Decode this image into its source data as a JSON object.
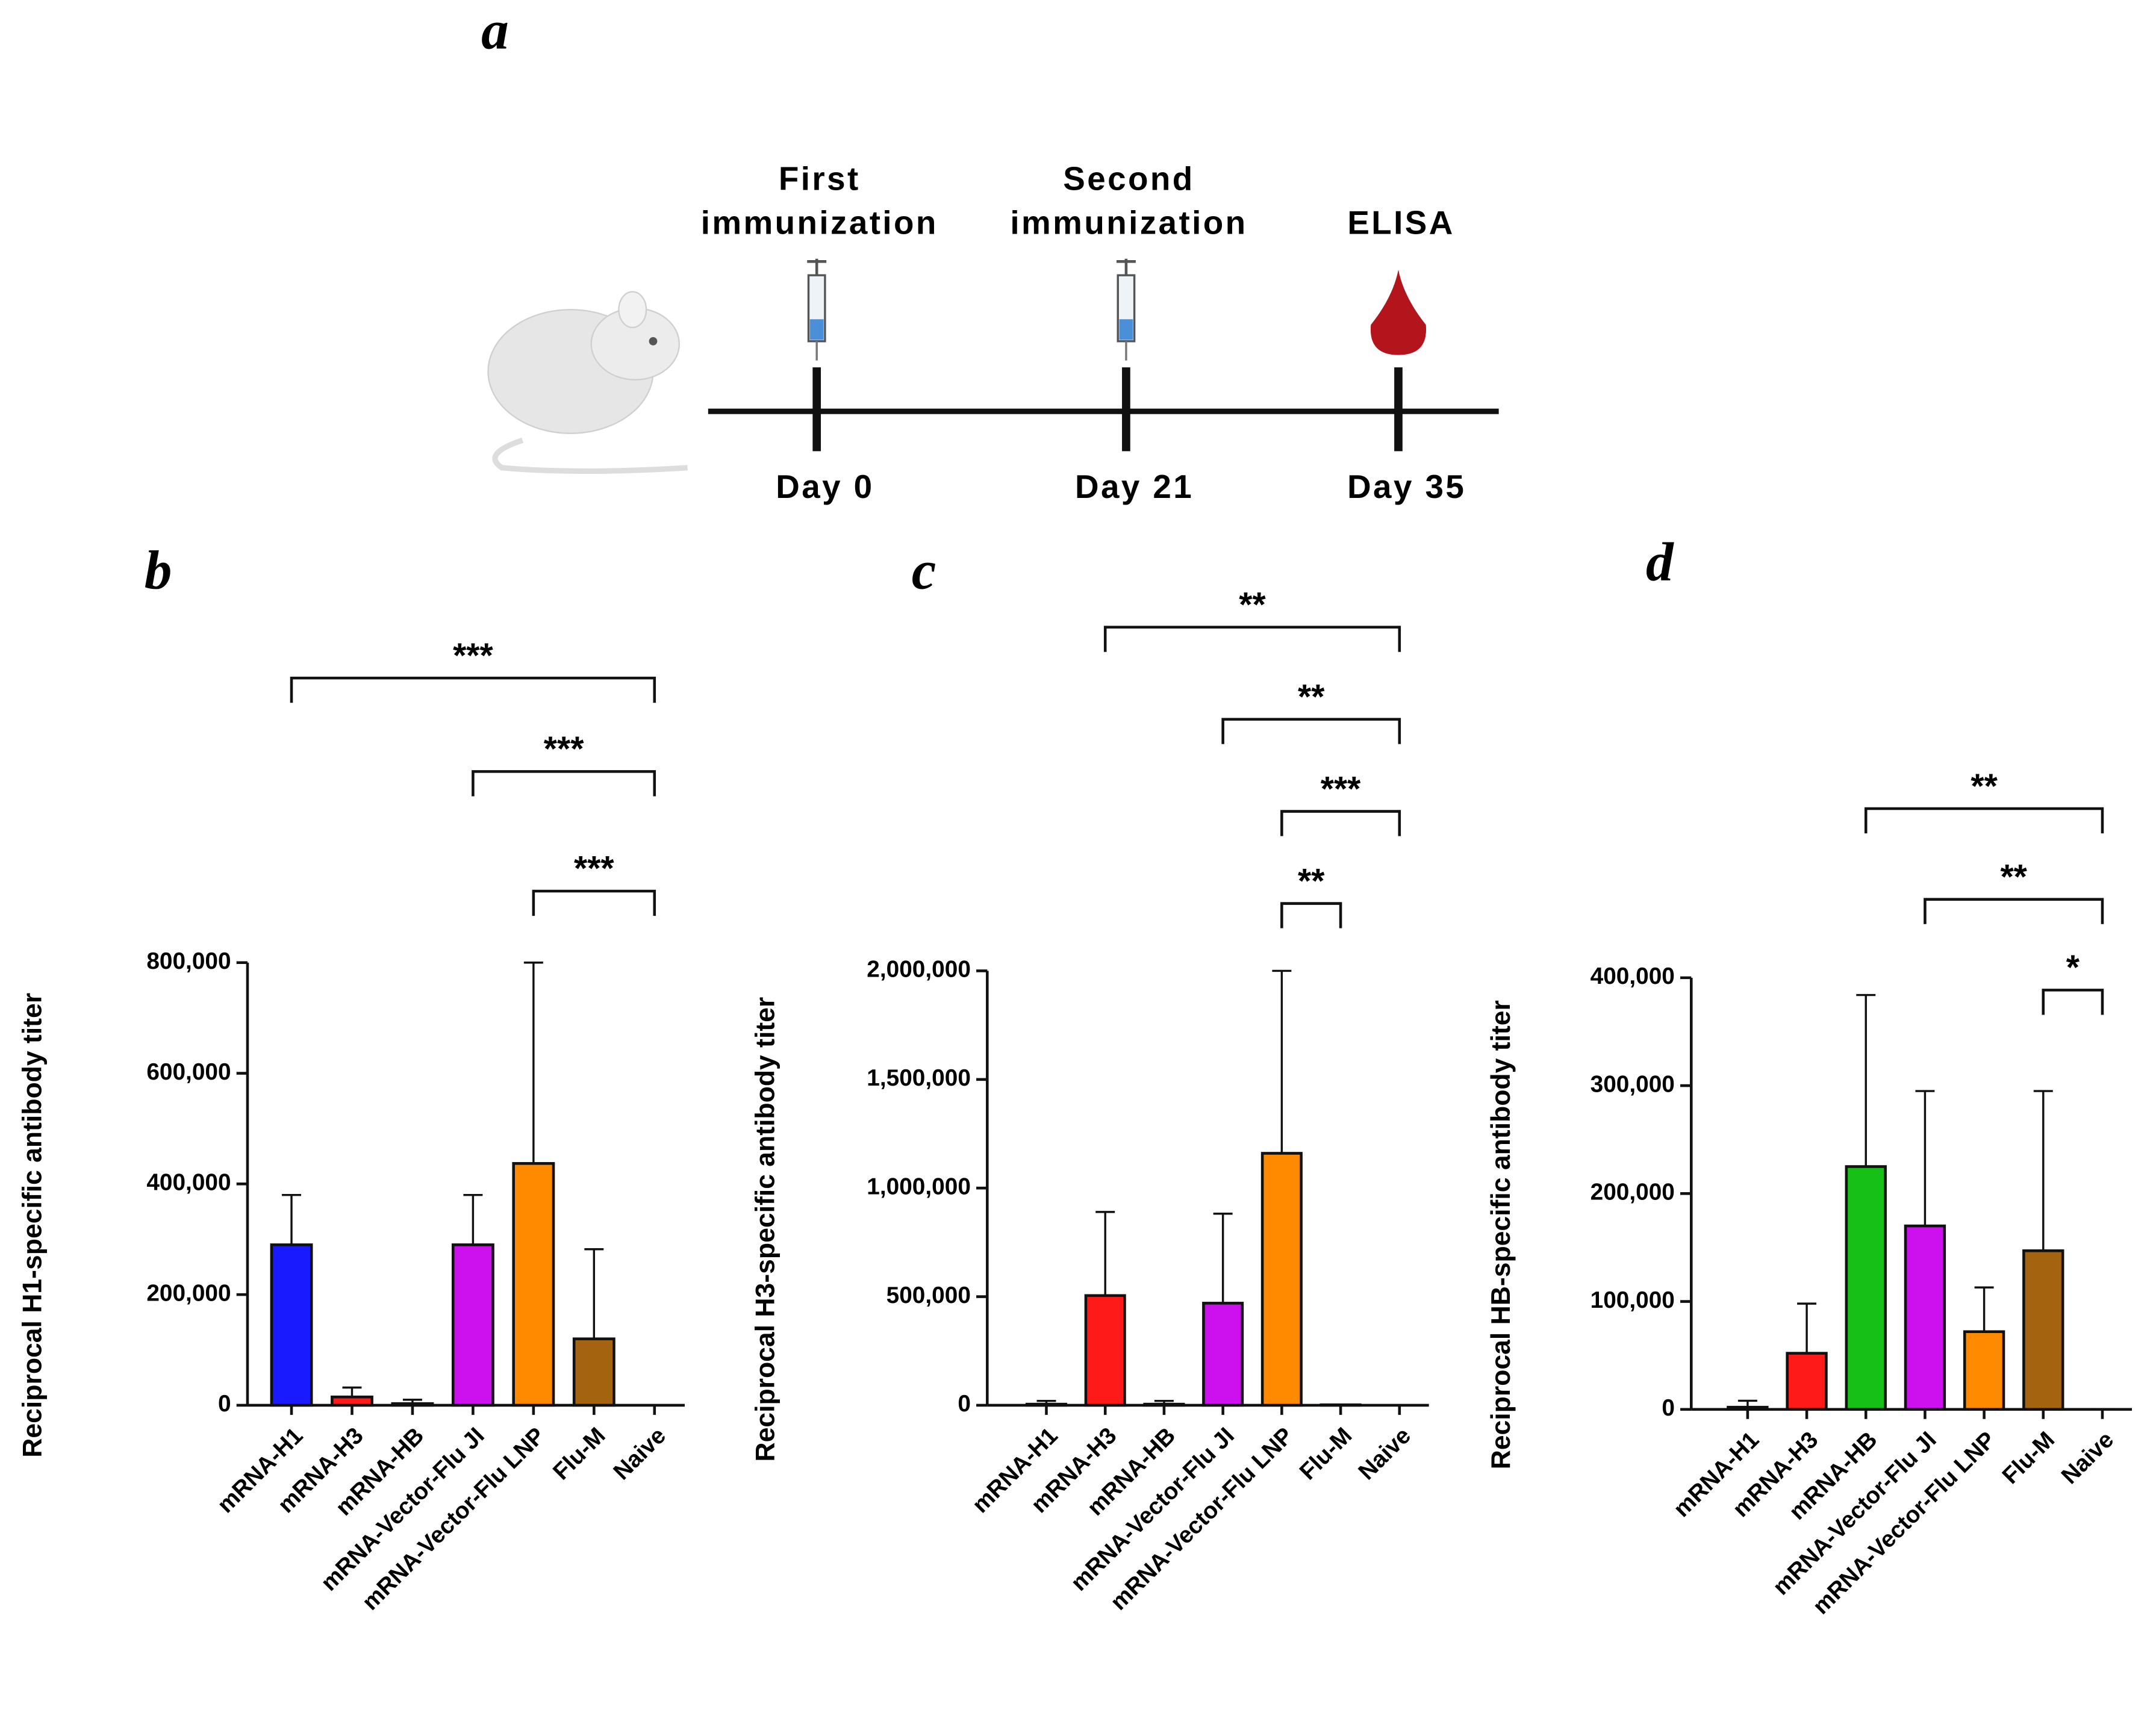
{
  "timeline": {
    "panel_label": "a",
    "events": [
      {
        "title_lines": [
          "First",
          "immunization"
        ],
        "day": "Day 0"
      },
      {
        "title_lines": [
          "Second",
          "immunization"
        ],
        "day": "Day 21"
      },
      {
        "title_lines": [
          "ELISA"
        ],
        "day": "Day 35"
      }
    ]
  },
  "chart_data": [
    {
      "type": "bar",
      "panel_label": "b",
      "y_label": "Reciprocal H1-specific antibody titer",
      "categories": [
        "mRNA-H1",
        "mRNA-H3",
        "mRNA-HB",
        "mRNA-Vector-Flu JI",
        "mRNA-Vector-Flu LNP",
        "Flu-M",
        "Naive"
      ],
      "values": [
        290000,
        15000,
        3000,
        290000,
        437000,
        120000,
        0
      ],
      "errors": [
        90000,
        17000,
        7000,
        90000,
        363000,
        162000,
        0
      ],
      "colors": [
        "#1a1aff",
        "#ff1a1a",
        "#16c016",
        "#cc11ee",
        "#ff8a00",
        "#a4630e",
        "#ffffff"
      ],
      "ylim": [
        0,
        800000
      ],
      "yticks": [
        0,
        {
          "value": 200000,
          "label": "200,000"
        },
        {
          "value": 400000,
          "label": "400,000"
        },
        {
          "value": 600000,
          "label": "600,000"
        },
        {
          "value": 800000,
          "label": "800,000"
        }
      ],
      "significance": [
        {
          "groups": [
            "mRNA-Vector-Flu LNP",
            "Naive"
          ],
          "label": "***"
        },
        {
          "groups": [
            "mRNA-Vector-Flu JI",
            "Naive"
          ],
          "label": "***"
        },
        {
          "groups": [
            "mRNA-H1",
            "Naive"
          ],
          "label": "***"
        }
      ]
    },
    {
      "type": "bar",
      "panel_label": "c",
      "y_label": "Reciprocal H3-specific antibody titer",
      "categories": [
        "mRNA-H1",
        "mRNA-H3",
        "mRNA-HB",
        "mRNA-Vector-Flu JI",
        "mRNA-Vector-Flu LNP",
        "Flu-M",
        "Naive"
      ],
      "values": [
        5000,
        505000,
        5000,
        470000,
        1160000,
        2000,
        0
      ],
      "errors": [
        15000,
        385000,
        15000,
        412000,
        840000,
        0,
        0
      ],
      "colors": [
        "#1a1aff",
        "#ff1a1a",
        "#16c016",
        "#cc11ee",
        "#ff8a00",
        "#a4630e",
        "#ffffff"
      ],
      "ylim": [
        0,
        2000000
      ],
      "yticks": [
        0,
        {
          "value": 500000,
          "label": "500,000"
        },
        {
          "value": 1000000,
          "label": "1,000,000"
        },
        {
          "value": 1500000,
          "label": "1,500,000"
        },
        {
          "value": 2000000,
          "label": "2,000,000"
        }
      ],
      "significance": [
        {
          "groups": [
            "mRNA-Vector-Flu LNP",
            "Flu-M"
          ],
          "label": "**"
        },
        {
          "groups": [
            "mRNA-Vector-Flu LNP",
            "Naive"
          ],
          "label": "***"
        },
        {
          "groups": [
            "mRNA-Vector-Flu JI",
            "Naive"
          ],
          "label": "**"
        },
        {
          "groups": [
            "mRNA-H3",
            "Naive"
          ],
          "label": "**"
        }
      ]
    },
    {
      "type": "bar",
      "panel_label": "d",
      "y_label": "Reciprocal HB-specific antibody titer",
      "categories": [
        "mRNA-H1",
        "mRNA-H3",
        "mRNA-HB",
        "mRNA-Vector-Flu JI",
        "mRNA-Vector-Flu LNP",
        "Flu-M",
        "Naive"
      ],
      "values": [
        2000,
        52000,
        225000,
        170000,
        72000,
        147000,
        0
      ],
      "errors": [
        6000,
        46000,
        159000,
        125000,
        41000,
        148000,
        0
      ],
      "colors": [
        "#1a1aff",
        "#ff1a1a",
        "#16c016",
        "#cc11ee",
        "#ff8a00",
        "#a4630e",
        "#ffffff"
      ],
      "ylim": [
        0,
        400000
      ],
      "yticks": [
        0,
        {
          "value": 100000,
          "label": "100,000"
        },
        {
          "value": 200000,
          "label": "200,000"
        },
        {
          "value": 300000,
          "label": "300,000"
        },
        {
          "value": 400000,
          "label": "400,000"
        }
      ],
      "significance": [
        {
          "groups": [
            "Flu-M",
            "Naive"
          ],
          "label": "*"
        },
        {
          "groups": [
            "mRNA-Vector-Flu JI",
            "Naive"
          ],
          "label": "**"
        },
        {
          "groups": [
            "mRNA-HB",
            "Naive"
          ],
          "label": "**"
        }
      ]
    }
  ]
}
